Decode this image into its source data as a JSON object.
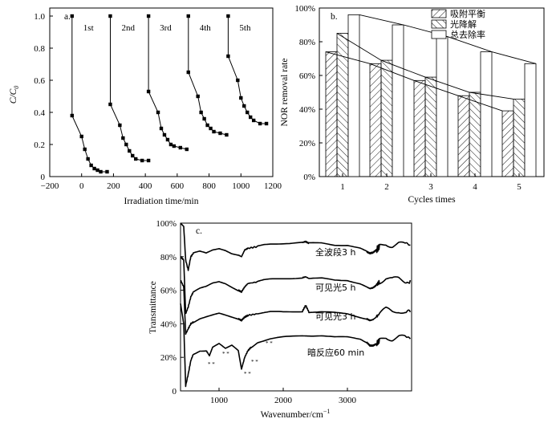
{
  "chart_data": [
    {
      "panel": "a.",
      "type": "scatter",
      "xlabel": "Irradiation time/min",
      "ylabel": "C/C0",
      "ylabel_main": "C/C",
      "ylabel_sub": "0",
      "xlim": [
        -200,
        1200
      ],
      "ylim": [
        0,
        1.05
      ],
      "xticks": [
        "−200",
        "0",
        "200",
        "400",
        "600",
        "800",
        "1000",
        "1200"
      ],
      "yticks": [
        "0",
        "0.2",
        "0.4",
        "0.6",
        "0.8",
        "1.0"
      ],
      "series": [
        {
          "name": "1st",
          "x": [
            -60,
            -60,
            0,
            20,
            40,
            60,
            80,
            100,
            120,
            160
          ],
          "y": [
            1.0,
            0.38,
            0.25,
            0.17,
            0.11,
            0.07,
            0.05,
            0.04,
            0.03,
            0.03
          ]
        },
        {
          "name": "2nd",
          "x": [
            180,
            180,
            240,
            260,
            280,
            300,
            320,
            340,
            380,
            420
          ],
          "y": [
            1.0,
            0.45,
            0.32,
            0.24,
            0.2,
            0.16,
            0.13,
            0.11,
            0.1,
            0.1
          ]
        },
        {
          "name": "3rd",
          "x": [
            420,
            420,
            480,
            500,
            520,
            540,
            560,
            580,
            620,
            660
          ],
          "y": [
            1.0,
            0.53,
            0.4,
            0.3,
            0.26,
            0.23,
            0.2,
            0.19,
            0.18,
            0.17
          ]
        },
        {
          "name": "4th",
          "x": [
            670,
            670,
            730,
            750,
            770,
            790,
            810,
            830,
            870,
            910
          ],
          "y": [
            1.0,
            0.65,
            0.5,
            0.4,
            0.36,
            0.32,
            0.3,
            0.28,
            0.27,
            0.26
          ]
        },
        {
          "name": "5th",
          "x": [
            920,
            920,
            980,
            1000,
            1020,
            1040,
            1060,
            1080,
            1120,
            1160
          ],
          "y": [
            1.0,
            0.75,
            0.6,
            0.49,
            0.44,
            0.4,
            0.37,
            0.35,
            0.33,
            0.33
          ]
        }
      ]
    },
    {
      "panel": "b.",
      "type": "bar",
      "xlabel": "Cycles times",
      "ylabel": "NOR removal rate",
      "categories": [
        "1",
        "2",
        "3",
        "4",
        "5"
      ],
      "ylim": [
        0,
        100
      ],
      "yticks": [
        "0%",
        "20%",
        "40%",
        "60%",
        "80%",
        "100%"
      ],
      "series": [
        {
          "name": "吸附平衡",
          "values": [
            74,
            67,
            57,
            48,
            39
          ]
        },
        {
          "name": "光降解",
          "values": [
            85,
            69,
            59,
            50,
            46
          ]
        },
        {
          "name": "总去除率",
          "values": [
            96,
            90,
            83,
            74,
            67
          ]
        }
      ]
    },
    {
      "panel": "c.",
      "type": "line",
      "xlabel": "Wavenumber/cm",
      "xlabel_sup": "−1",
      "ylabel": "Transmittance",
      "xlim": [
        400,
        4000
      ],
      "ylim": [
        0,
        100
      ],
      "xticks": [
        "1000",
        "2000",
        "3000"
      ],
      "yticks": [
        "0",
        "20%",
        "40%",
        "60%",
        "80%",
        "100%"
      ],
      "series_labels": [
        "全波段3 h",
        "可见光5 h",
        "可见光3 h",
        "暗反应60 min"
      ],
      "marker_text": "* *",
      "spectra": [
        {
          "name": "全波段3 h",
          "baseline": 87.5,
          "x": [
            400,
            450,
            480,
            520,
            560,
            600,
            700,
            800,
            900,
            1000,
            1100,
            1200,
            1300,
            1350,
            1400,
            1450,
            1600,
            1700,
            1800,
            2000,
            2300,
            2350,
            2400,
            2600,
            2800,
            3000,
            3200,
            3300,
            3350,
            3400,
            3450,
            3500,
            3600,
            3700,
            3800,
            3900,
            3980
          ],
          "y": [
            100,
            98,
            78,
            72,
            80,
            82,
            83,
            82,
            84,
            85,
            84,
            82,
            81,
            80,
            84,
            85,
            86,
            87,
            87.5,
            88,
            88.5,
            89,
            88,
            88,
            87,
            87,
            85,
            83,
            82,
            82.5,
            84,
            86,
            88,
            87,
            88,
            87,
            87
          ]
        },
        {
          "name": "可见光5 h",
          "baseline": 66,
          "x": [
            400,
            450,
            480,
            520,
            560,
            600,
            700,
            800,
            900,
            1000,
            1100,
            1200,
            1300,
            1350,
            1400,
            1450,
            1600,
            1700,
            1800,
            2000,
            2300,
            2350,
            2400,
            2600,
            2800,
            3000,
            3200,
            3300,
            3350,
            3400,
            3450,
            3500,
            3600,
            3700,
            3800,
            3900,
            3980
          ],
          "y": [
            80,
            78,
            46,
            50,
            56,
            59,
            61,
            62,
            64,
            65,
            64,
            62,
            60,
            59,
            62,
            64,
            65,
            66,
            66.5,
            67,
            67.5,
            68,
            67,
            67,
            66,
            66,
            64,
            62,
            61,
            61.5,
            63,
            65,
            67,
            66,
            67,
            66,
            66
          ]
        },
        {
          "name": "可见光3 h",
          "baseline": 47,
          "x": [
            400,
            450,
            480,
            520,
            560,
            600,
            700,
            800,
            900,
            1000,
            1100,
            1200,
            1300,
            1350,
            1400,
            1450,
            1600,
            1700,
            1800,
            2000,
            2300,
            2350,
            2400,
            2600,
            2800,
            3000,
            3200,
            3300,
            3350,
            3400,
            3450,
            3500,
            3600,
            3700,
            3800,
            3900,
            3980
          ],
          "y": [
            66,
            62,
            34,
            37,
            40,
            41,
            43,
            44,
            45,
            46,
            45,
            44,
            43,
            42,
            44,
            45,
            46,
            46.5,
            47,
            47,
            47.5,
            51,
            47,
            47,
            46.5,
            46,
            44,
            43,
            42,
            42.5,
            44,
            46,
            48,
            47,
            48,
            47,
            47
          ]
        },
        {
          "name": "暗反应60 min",
          "baseline": 31,
          "x": [
            400,
            450,
            480,
            520,
            560,
            600,
            700,
            800,
            850,
            900,
            1000,
            1100,
            1200,
            1300,
            1350,
            1400,
            1450,
            1500,
            1600,
            1700,
            1800,
            2000,
            2300,
            2400,
            2600,
            2800,
            3000,
            3200,
            3300,
            3350,
            3400,
            3450,
            3500,
            3600,
            3700,
            3800,
            3900,
            3980
          ],
          "y": [
            52,
            40,
            3,
            10,
            18,
            22,
            24,
            24,
            21,
            26,
            28,
            25,
            27,
            24,
            13,
            20,
            24,
            26,
            29,
            30,
            31,
            32,
            33,
            33,
            33,
            32,
            32,
            31,
            29,
            27,
            27,
            28,
            30,
            32,
            31,
            32,
            31,
            31
          ]
        }
      ]
    }
  ]
}
